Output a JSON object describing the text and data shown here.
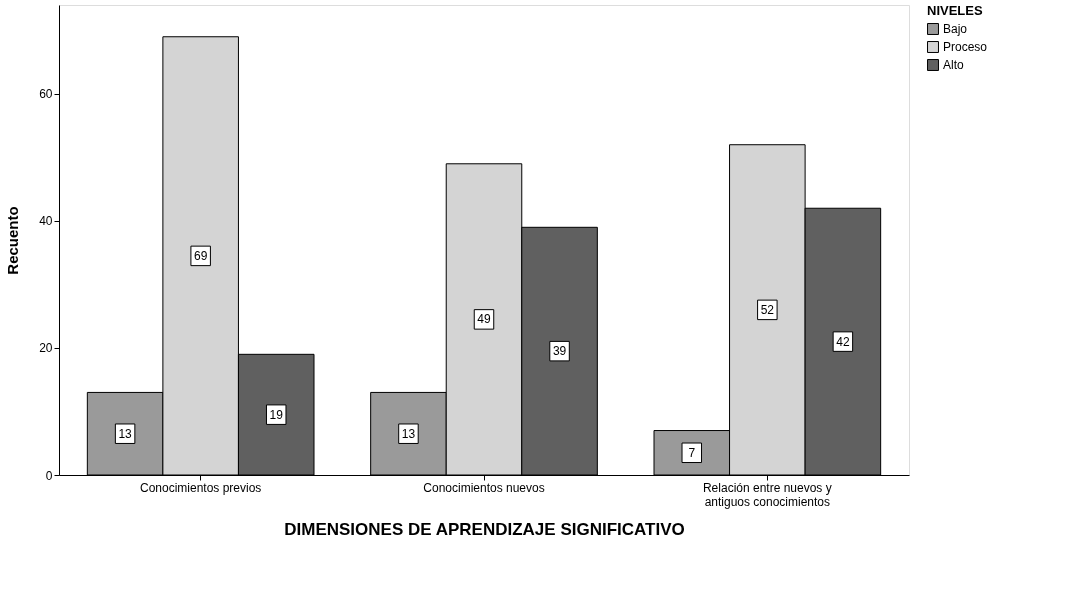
{
  "chart_data": {
    "type": "bar",
    "xlabel": "DIMENSIONES DE APRENDIZAJE SIGNIFICATIVO",
    "ylabel": "Recuento",
    "legend_title": "NIVELES",
    "categories": [
      "Conocimientos previos",
      "Conocimientos nuevos",
      "Relación entre nuevos y antiguos conocimientos"
    ],
    "series": [
      {
        "name": "Bajo",
        "color": "#9a9a9a",
        "values": [
          13,
          13,
          7
        ]
      },
      {
        "name": "Proceso",
        "color": "#d4d4d4",
        "values": [
          69,
          49,
          52
        ]
      },
      {
        "name": "Alto",
        "color": "#606060",
        "values": [
          19,
          39,
          42
        ]
      }
    ],
    "ylim": [
      0,
      74
    ],
    "yticks": [
      0,
      20,
      40,
      60
    ],
    "grid": false,
    "legend": "top right",
    "data_labels": true
  }
}
